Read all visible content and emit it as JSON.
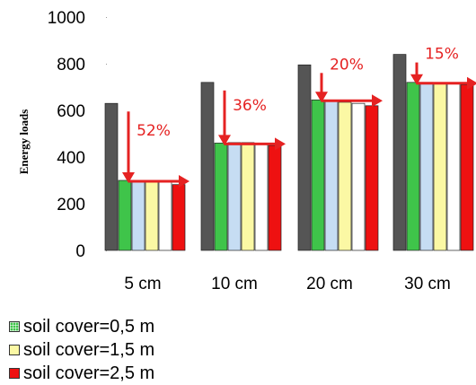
{
  "chart_data": {
    "type": "bar",
    "categories": [
      "5 cm",
      "10 cm",
      "20 cm",
      "30 cm"
    ],
    "ylabel": "Energy loads",
    "ylim": [
      0,
      1000
    ],
    "yticks": [
      0,
      200,
      400,
      600,
      800,
      1000
    ],
    "series": [
      {
        "values": [
          630,
          720,
          795,
          840
        ],
        "color": "#555555"
      },
      {
        "name": "soil cover=0,5 m",
        "values": [
          300,
          460,
          645,
          720
        ],
        "color": "#3fc44a"
      },
      {
        "values": [
          300,
          462,
          640,
          720
        ],
        "color": "#c6ddf3"
      },
      {
        "name": "soil cover=1,5 m",
        "values": [
          300,
          462,
          635,
          718
        ],
        "color": "#fbf8a4"
      },
      {
        "values": [
          300,
          455,
          630,
          715
        ],
        "color": "#ffffff"
      },
      {
        "name": "soil cover=2,5 m",
        "values": [
          282,
          450,
          620,
          710
        ],
        "color": "#ee1111"
      }
    ],
    "annotations": [
      "52%",
      "36%",
      "20%",
      "15%"
    ],
    "arrow_color": "#e52222"
  }
}
